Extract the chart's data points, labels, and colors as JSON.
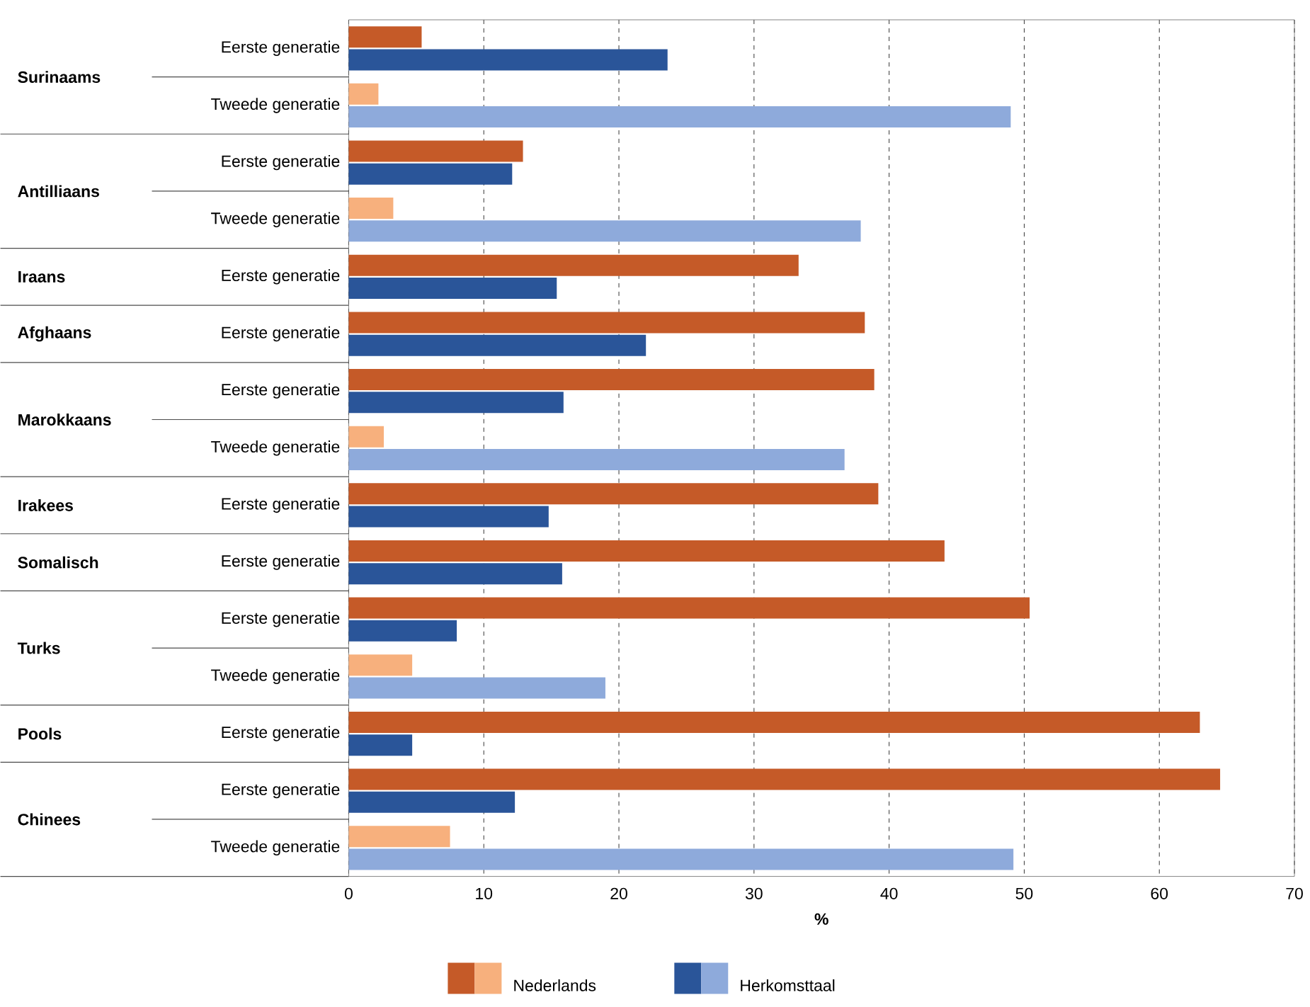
{
  "chart_data": {
    "type": "bar",
    "orientation": "horizontal",
    "xlabel": "%",
    "categories": [
      "Eerste generatie",
      "Tweede generatie",
      "Eerste generatie",
      "Tweede generatie",
      "Eerste generatie",
      "Eerste generatie",
      "Eerste generatie",
      "Tweede generatie",
      "Eerste generatie",
      "Eerste generatie",
      "Eerste generatie",
      "Tweede generatie",
      "Eerste generatie",
      "Eerste generatie",
      "Tweede generatie"
    ],
    "series": [
      {
        "name": "Nederlands",
        "color": "#c55a28",
        "colors": [
          "#c55a28",
          "#f7b07d",
          "#c55a28",
          "#f7b07d",
          "#c55a28",
          "#c55a28",
          "#c55a28",
          "#f7b07d",
          "#c55a28",
          "#c55a28",
          "#c55a28",
          "#f7b07d",
          "#c55a28",
          "#c55a28",
          "#f7b07d"
        ],
        "values": [
          5.4,
          2.2,
          12.9,
          3.3,
          33.3,
          38.2,
          38.9,
          2.6,
          39.2,
          44.1,
          50.4,
          4.7,
          63.0,
          64.5,
          7.5
        ]
      },
      {
        "name": "Herkomsttaal",
        "color": "#2a5599",
        "colors": [
          "#2a5599",
          "#8eaadb",
          "#2a5599",
          "#8eaadb",
          "#2a5599",
          "#2a5599",
          "#2a5599",
          "#8eaadb",
          "#2a5599",
          "#2a5599",
          "#2a5599",
          "#8eaadb",
          "#2a5599",
          "#2a5599",
          "#8eaadb"
        ],
        "values": [
          23.6,
          49.0,
          12.1,
          37.9,
          15.4,
          22.0,
          15.9,
          36.7,
          14.8,
          15.8,
          8.0,
          19.0,
          4.7,
          12.3,
          49.2
        ]
      }
    ],
    "annotations": [
      "Surinaams",
      "Antilliaans",
      "Iraans",
      "Afghaans",
      "Marokkaans",
      "Irakees",
      "Somalisch",
      "Turks",
      "Pools",
      "Chinees"
    ],
    "xlim": [
      0,
      70
    ],
    "xticks": [
      0,
      10,
      20,
      30,
      40,
      50,
      60,
      70
    ],
    "grid": "x",
    "legend": "bottom"
  }
}
